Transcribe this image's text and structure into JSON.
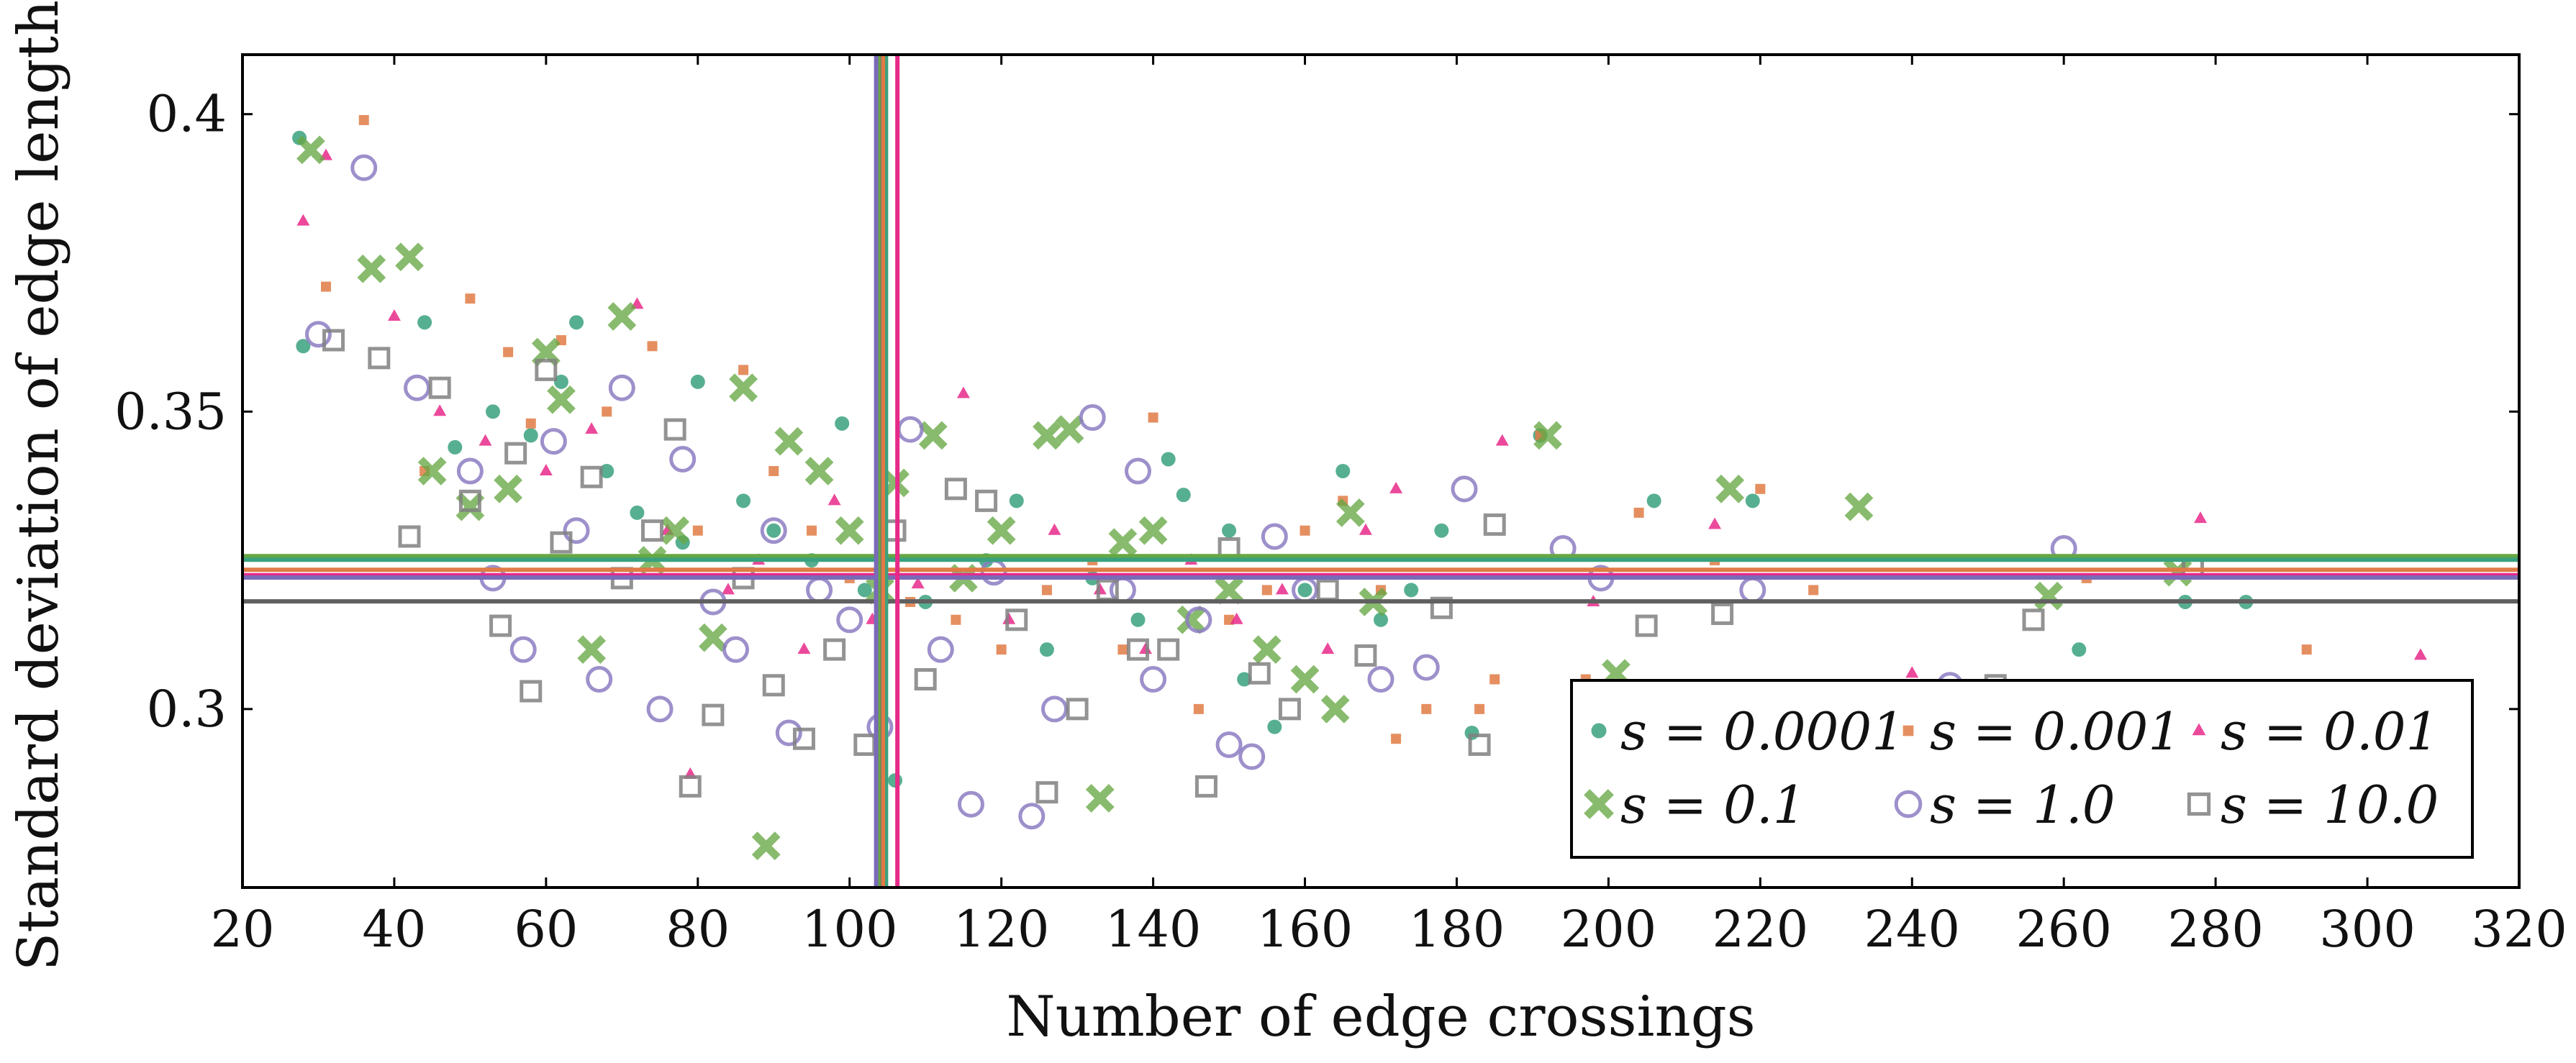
{
  "chart_data": {
    "type": "scatter",
    "title": "",
    "xlabel": "Number of edge crossings",
    "ylabel": "Standard deviation of edge lengths",
    "xlim": [
      20,
      320
    ],
    "ylim": [
      0.27,
      0.41
    ],
    "xticks": [
      20,
      40,
      60,
      80,
      100,
      120,
      140,
      160,
      180,
      200,
      220,
      240,
      260,
      280,
      300,
      320
    ],
    "xtick_labels": [
      "20",
      "40",
      "60",
      "80",
      "100",
      "120",
      "140",
      "160",
      "180",
      "200",
      "220",
      "240",
      "260",
      "280",
      "300",
      "320"
    ],
    "yticks": [
      0.3,
      0.35,
      0.4
    ],
    "ytick_labels": [
      "0.3",
      "0.35",
      "0.4"
    ],
    "grid": false,
    "legend_position": "bottom-right",
    "series": [
      {
        "name": "s = 0.0001",
        "legend_label": "s = 0.0001",
        "marker": "circle",
        "color": "#3aa17e",
        "mean_x": 104.8,
        "mean_y": 0.3251,
        "points": [
          [
            27.5,
            0.396
          ],
          [
            28,
            0.361
          ],
          [
            44,
            0.365
          ],
          [
            48,
            0.344
          ],
          [
            53,
            0.35
          ],
          [
            58,
            0.346
          ],
          [
            62,
            0.355
          ],
          [
            64,
            0.365
          ],
          [
            68,
            0.34
          ],
          [
            72,
            0.333
          ],
          [
            78,
            0.328
          ],
          [
            80,
            0.355
          ],
          [
            86,
            0.335
          ],
          [
            90,
            0.33
          ],
          [
            95,
            0.325
          ],
          [
            99,
            0.348
          ],
          [
            102,
            0.32
          ],
          [
            106,
            0.288
          ],
          [
            110,
            0.318
          ],
          [
            118,
            0.325
          ],
          [
            122,
            0.335
          ],
          [
            126,
            0.31
          ],
          [
            132,
            0.322
          ],
          [
            138,
            0.315
          ],
          [
            142,
            0.342
          ],
          [
            144,
            0.336
          ],
          [
            150,
            0.33
          ],
          [
            152,
            0.305
          ],
          [
            156,
            0.297
          ],
          [
            160,
            0.32
          ],
          [
            165,
            0.34
          ],
          [
            170,
            0.315
          ],
          [
            174,
            0.32
          ],
          [
            178,
            0.33
          ],
          [
            182,
            0.296
          ],
          [
            191,
            0.346
          ],
          [
            206,
            0.335
          ],
          [
            219,
            0.335
          ],
          [
            262,
            0.31
          ],
          [
            276,
            0.318
          ],
          [
            284,
            0.318
          ]
        ]
      },
      {
        "name": "s = 0.001",
        "legend_label": "s = 0.001",
        "marker": "square-filled",
        "color": "#e07b45",
        "mean_x": 104.4,
        "mean_y": 0.3234,
        "points": [
          [
            36,
            0.399
          ],
          [
            31,
            0.371
          ],
          [
            44,
            0.34
          ],
          [
            50,
            0.369
          ],
          [
            55,
            0.36
          ],
          [
            58,
            0.348
          ],
          [
            62,
            0.362
          ],
          [
            68,
            0.35
          ],
          [
            74,
            0.361
          ],
          [
            80,
            0.33
          ],
          [
            86,
            0.357
          ],
          [
            90,
            0.34
          ],
          [
            95,
            0.33
          ],
          [
            100,
            0.322
          ],
          [
            104,
            0.31
          ],
          [
            108,
            0.318
          ],
          [
            114,
            0.315
          ],
          [
            120,
            0.31
          ],
          [
            126,
            0.32
          ],
          [
            132,
            0.325
          ],
          [
            136,
            0.31
          ],
          [
            140,
            0.349
          ],
          [
            146,
            0.3
          ],
          [
            150,
            0.315
          ],
          [
            155,
            0.32
          ],
          [
            160,
            0.33
          ],
          [
            165,
            0.335
          ],
          [
            170,
            0.32
          ],
          [
            172,
            0.295
          ],
          [
            176,
            0.3
          ],
          [
            183,
            0.3
          ],
          [
            185,
            0.305
          ],
          [
            191,
            0.346
          ],
          [
            197,
            0.305
          ],
          [
            204,
            0.333
          ],
          [
            214,
            0.325
          ],
          [
            220,
            0.337
          ],
          [
            227,
            0.32
          ],
          [
            263,
            0.322
          ],
          [
            292,
            0.31
          ]
        ]
      },
      {
        "name": "s = 0.01",
        "legend_label": "s = 0.01",
        "marker": "triangle",
        "color": "#e7298a",
        "mean_x": 106.3,
        "mean_y": 0.3225,
        "points": [
          [
            28,
            0.382
          ],
          [
            31,
            0.393
          ],
          [
            40,
            0.366
          ],
          [
            46,
            0.35
          ],
          [
            52,
            0.345
          ],
          [
            60,
            0.34
          ],
          [
            66,
            0.347
          ],
          [
            72,
            0.368
          ],
          [
            76,
            0.33
          ],
          [
            79,
            0.289
          ],
          [
            84,
            0.32
          ],
          [
            88,
            0.325
          ],
          [
            94,
            0.31
          ],
          [
            98,
            0.335
          ],
          [
            103,
            0.315
          ],
          [
            109,
            0.321
          ],
          [
            115,
            0.353
          ],
          [
            121,
            0.315
          ],
          [
            127,
            0.33
          ],
          [
            133,
            0.32
          ],
          [
            139,
            0.31
          ],
          [
            145,
            0.325
          ],
          [
            151,
            0.315
          ],
          [
            157,
            0.32
          ],
          [
            163,
            0.31
          ],
          [
            168,
            0.33
          ],
          [
            172,
            0.337
          ],
          [
            186,
            0.345
          ],
          [
            198,
            0.318
          ],
          [
            214,
            0.331
          ],
          [
            240,
            0.306
          ],
          [
            278,
            0.332
          ],
          [
            307,
            0.309
          ]
        ]
      },
      {
        "name": "s = 0.1",
        "legend_label": "s = 0.1",
        "marker": "x",
        "color": "#66a844",
        "mean_x": 103.8,
        "mean_y": 0.3257,
        "points": [
          [
            29,
            0.394
          ],
          [
            37,
            0.374
          ],
          [
            42,
            0.376
          ],
          [
            45,
            0.34
          ],
          [
            50,
            0.334
          ],
          [
            55,
            0.337
          ],
          [
            60,
            0.36
          ],
          [
            62,
            0.352
          ],
          [
            66,
            0.31
          ],
          [
            70,
            0.366
          ],
          [
            74,
            0.325
          ],
          [
            77,
            0.33
          ],
          [
            82,
            0.312
          ],
          [
            86,
            0.354
          ],
          [
            89,
            0.277
          ],
          [
            92,
            0.345
          ],
          [
            96,
            0.34
          ],
          [
            100,
            0.33
          ],
          [
            104,
            0.32
          ],
          [
            106,
            0.338
          ],
          [
            111,
            0.346
          ],
          [
            115,
            0.322
          ],
          [
            120,
            0.33
          ],
          [
            126,
            0.346
          ],
          [
            129,
            0.347
          ],
          [
            133,
            0.285
          ],
          [
            136,
            0.328
          ],
          [
            140,
            0.33
          ],
          [
            145,
            0.315
          ],
          [
            150,
            0.32
          ],
          [
            155,
            0.31
          ],
          [
            160,
            0.305
          ],
          [
            164,
            0.3
          ],
          [
            166,
            0.333
          ],
          [
            169,
            0.318
          ],
          [
            192,
            0.346
          ],
          [
            201,
            0.306
          ],
          [
            216,
            0.337
          ],
          [
            233,
            0.334
          ],
          [
            258,
            0.319
          ],
          [
            275,
            0.323
          ]
        ]
      },
      {
        "name": "s = 1.0",
        "legend_label": "s = 1.0",
        "marker": "circle-open",
        "color": "#8c7cc2",
        "mean_x": 103.5,
        "mean_y": 0.3221,
        "points": [
          [
            36,
            0.391
          ],
          [
            30,
            0.363
          ],
          [
            43,
            0.354
          ],
          [
            50,
            0.34
          ],
          [
            53,
            0.322
          ],
          [
            57,
            0.31
          ],
          [
            61,
            0.345
          ],
          [
            64,
            0.33
          ],
          [
            67,
            0.305
          ],
          [
            70,
            0.354
          ],
          [
            75,
            0.3
          ],
          [
            78,
            0.342
          ],
          [
            82,
            0.318
          ],
          [
            85,
            0.31
          ],
          [
            90,
            0.33
          ],
          [
            92,
            0.296
          ],
          [
            96,
            0.32
          ],
          [
            100,
            0.315
          ],
          [
            104,
            0.297
          ],
          [
            108,
            0.347
          ],
          [
            112,
            0.31
          ],
          [
            116,
            0.284
          ],
          [
            119,
            0.323
          ],
          [
            124,
            0.282
          ],
          [
            127,
            0.3
          ],
          [
            132,
            0.349
          ],
          [
            136,
            0.32
          ],
          [
            138,
            0.34
          ],
          [
            140,
            0.305
          ],
          [
            146,
            0.315
          ],
          [
            150,
            0.294
          ],
          [
            153,
            0.292
          ],
          [
            156,
            0.329
          ],
          [
            160,
            0.32
          ],
          [
            170,
            0.305
          ],
          [
            176,
            0.307
          ],
          [
            181,
            0.337
          ],
          [
            194,
            0.327
          ],
          [
            199,
            0.322
          ],
          [
            219,
            0.32
          ],
          [
            245,
            0.304
          ],
          [
            260,
            0.327
          ]
        ]
      },
      {
        "name": "s = 10.0",
        "legend_label": "s = 10.0",
        "marker": "square-open",
        "color": "#808080",
        "mean_x": 103.9,
        "mean_y": 0.3181,
        "points": [
          [
            32,
            0.362
          ],
          [
            38,
            0.359
          ],
          [
            42,
            0.329
          ],
          [
            46,
            0.354
          ],
          [
            50,
            0.335
          ],
          [
            54,
            0.314
          ],
          [
            56,
            0.343
          ],
          [
            58,
            0.303
          ],
          [
            60,
            0.357
          ],
          [
            62,
            0.328
          ],
          [
            66,
            0.339
          ],
          [
            70,
            0.322
          ],
          [
            74,
            0.33
          ],
          [
            77,
            0.347
          ],
          [
            79,
            0.287
          ],
          [
            82,
            0.299
          ],
          [
            86,
            0.322
          ],
          [
            90,
            0.304
          ],
          [
            94,
            0.295
          ],
          [
            98,
            0.31
          ],
          [
            102,
            0.294
          ],
          [
            106,
            0.33
          ],
          [
            110,
            0.305
          ],
          [
            114,
            0.337
          ],
          [
            118,
            0.335
          ],
          [
            122,
            0.315
          ],
          [
            126,
            0.286
          ],
          [
            130,
            0.3
          ],
          [
            134,
            0.32
          ],
          [
            138,
            0.31
          ],
          [
            142,
            0.31
          ],
          [
            147,
            0.287
          ],
          [
            150,
            0.327
          ],
          [
            154,
            0.306
          ],
          [
            158,
            0.3
          ],
          [
            163,
            0.32
          ],
          [
            168,
            0.309
          ],
          [
            178,
            0.317
          ],
          [
            183,
            0.294
          ],
          [
            185,
            0.331
          ],
          [
            205,
            0.314
          ],
          [
            215,
            0.316
          ],
          [
            251,
            0.304
          ],
          [
            256,
            0.315
          ],
          [
            277,
            0.324
          ]
        ]
      }
    ],
    "mean_lines": {
      "vertical": [
        {
          "series": "s = 0.01",
          "x": 106.3,
          "color": "#e7298a"
        },
        {
          "series": "s = 0.0001",
          "x": 104.8,
          "color": "#3aa17e"
        },
        {
          "series": "s = 0.001",
          "x": 104.4,
          "color": "#e07b45"
        },
        {
          "series": "s = 10.0",
          "x": 103.9,
          "color": "#707070"
        },
        {
          "series": "s = 0.1",
          "x": 103.8,
          "color": "#66a844"
        },
        {
          "series": "s = 1.0",
          "x": 103.5,
          "color": "#7a6ab8"
        }
      ],
      "horizontal": [
        {
          "series": "s = 0.1",
          "y": 0.3257,
          "color": "#66a844"
        },
        {
          "series": "s = 0.0001",
          "y": 0.3251,
          "color": "#3aa17e"
        },
        {
          "series": "s = 0.001",
          "y": 0.3234,
          "color": "#e07b45"
        },
        {
          "series": "s = 0.01",
          "y": 0.3225,
          "color": "#e7298a"
        },
        {
          "series": "s = 1.0",
          "y": 0.3221,
          "color": "#7a6ab8"
        },
        {
          "series": "s = 10.0",
          "y": 0.3181,
          "color": "#606060"
        }
      ]
    }
  }
}
